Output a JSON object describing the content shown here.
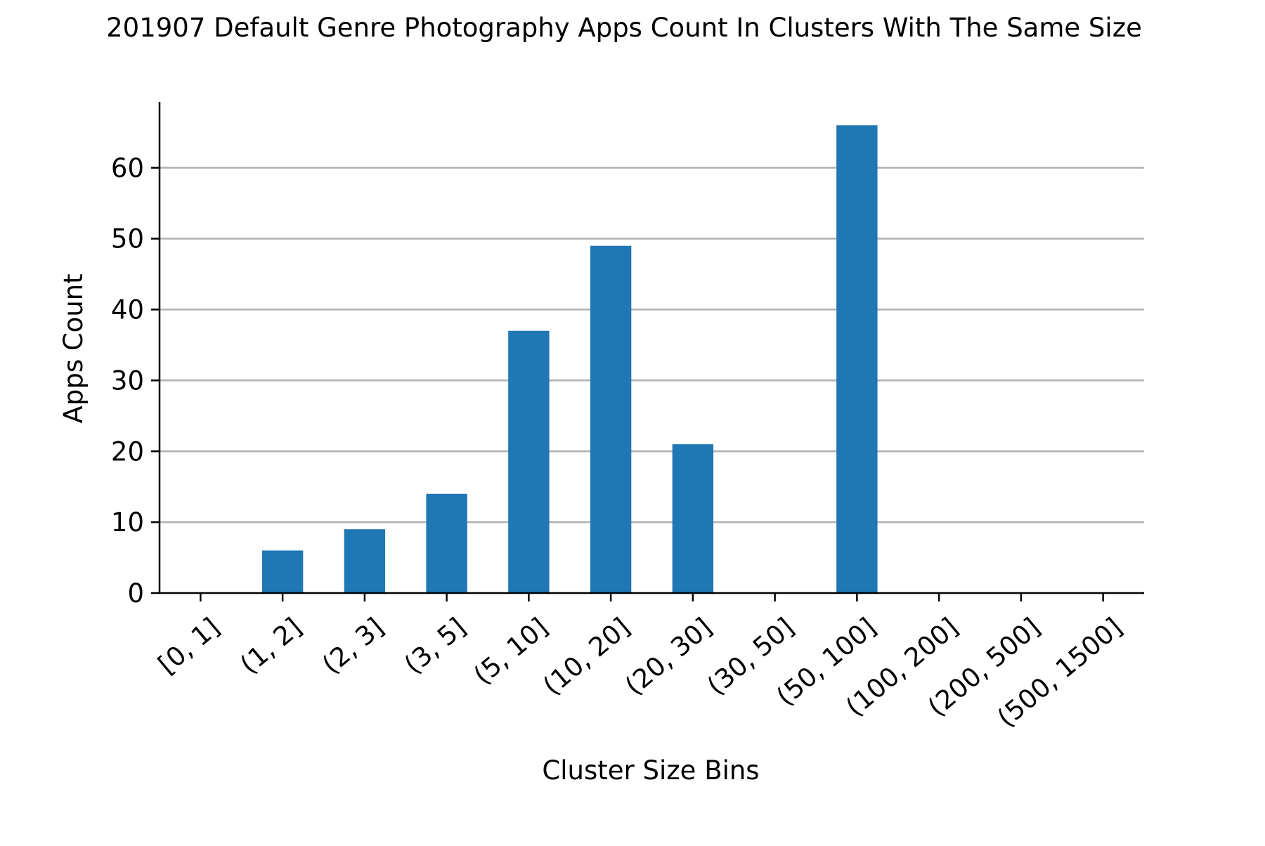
{
  "chart_data": {
    "type": "bar",
    "title": "201907 Default Genre Photography Apps Count In Clusters With The Same Size",
    "xlabel": "Cluster Size Bins",
    "ylabel": "Apps Count",
    "categories": [
      "[0, 1]",
      "(1, 2]",
      "(2, 3]",
      "(3, 5]",
      "(5, 10]",
      "(10, 20]",
      "(20, 30]",
      "(30, 50]",
      "(50, 100]",
      "(100, 200]",
      "(200, 500]",
      "(500, 1500]"
    ],
    "values": [
      0,
      6,
      9,
      14,
      37,
      49,
      21,
      0,
      66,
      0,
      0,
      0
    ],
    "ylim": [
      0,
      69.3
    ],
    "yticks": [
      0,
      10,
      20,
      30,
      40,
      50,
      60
    ],
    "grid": "horizontal",
    "legend": "none",
    "colors": {
      "bar": "#1f77b4",
      "grid": "#b0b0b0",
      "axis": "#000000"
    }
  }
}
